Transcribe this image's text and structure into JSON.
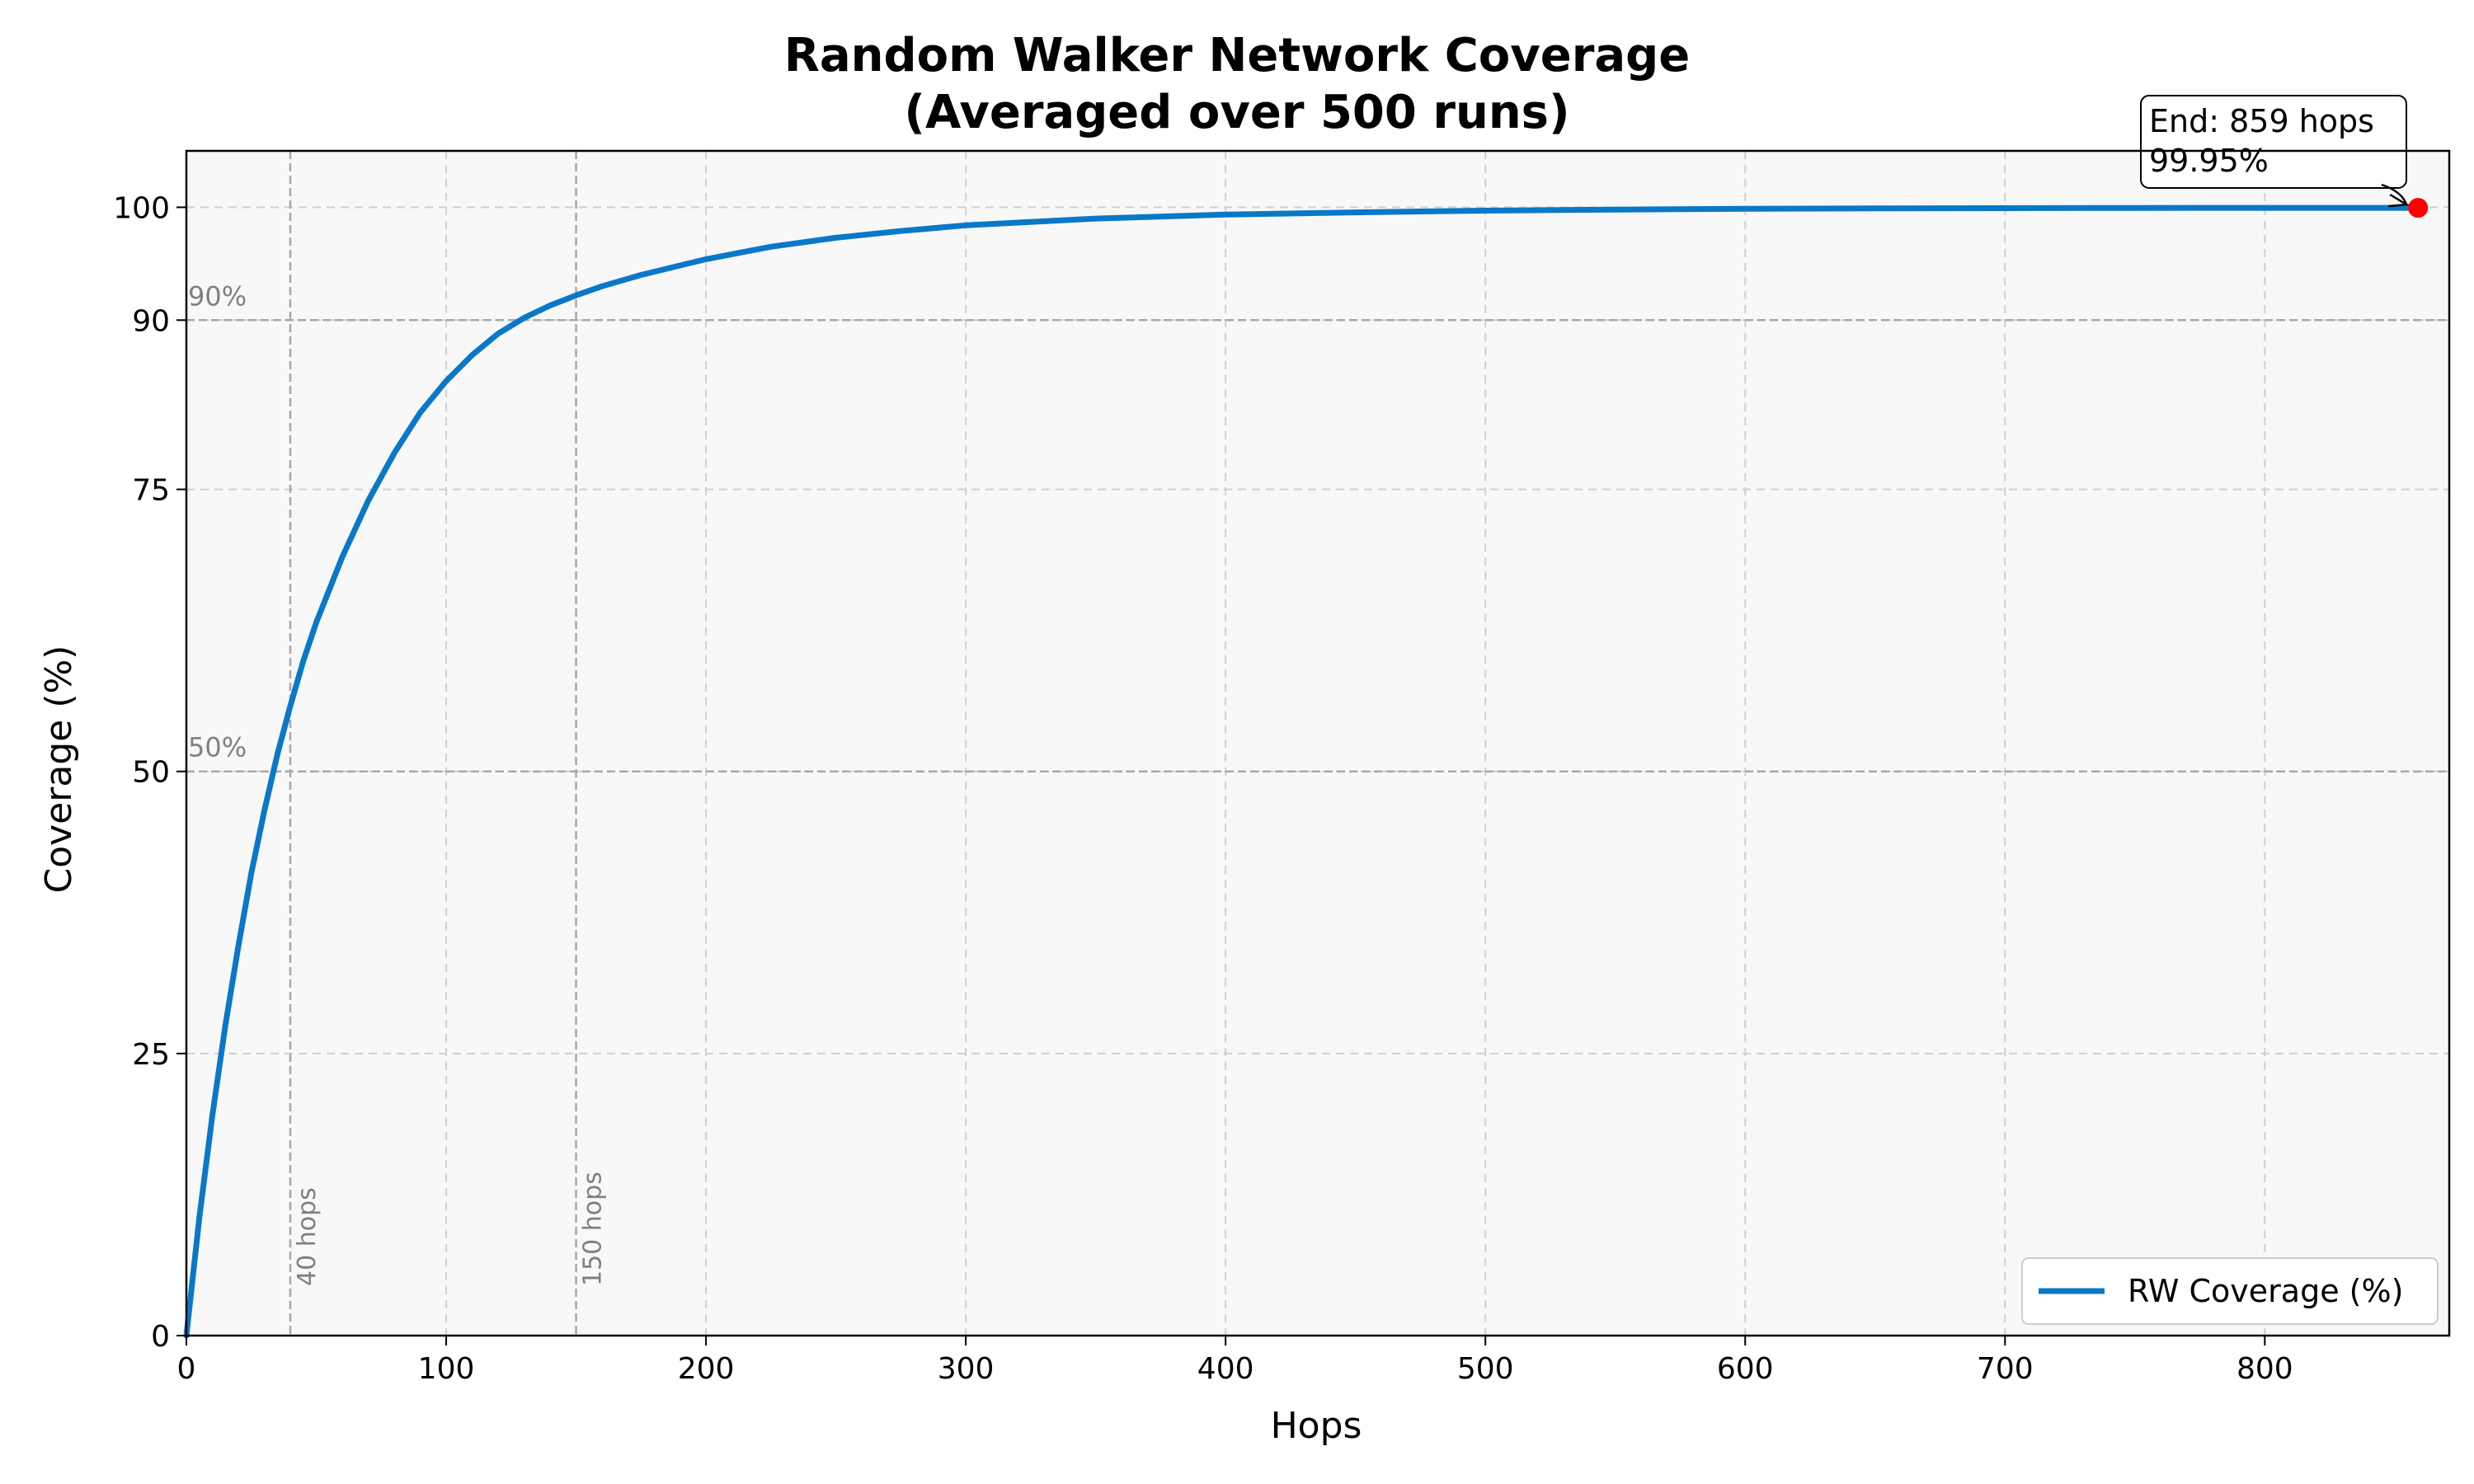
{
  "chart_data": {
    "type": "line",
    "title_line1": "Random Walker Network Coverage",
    "title_line2": "(Averaged over 500 runs)",
    "xlabel": "Hops",
    "ylabel": "Coverage (%)",
    "xlim": [
      0,
      871
    ],
    "ylim": [
      0,
      105
    ],
    "x_ticks": [
      0,
      100,
      200,
      300,
      400,
      500,
      600,
      700,
      800
    ],
    "y_ticks": [
      0,
      25,
      50,
      75,
      90,
      100
    ],
    "grid": true,
    "legend_position": "lower-right",
    "series": [
      {
        "name": "RW Coverage (%)",
        "color": "#0a78c8",
        "x": [
          0,
          5,
          10,
          15,
          20,
          25,
          30,
          35,
          40,
          45,
          50,
          60,
          70,
          80,
          90,
          100,
          110,
          120,
          130,
          140,
          150,
          160,
          175,
          200,
          225,
          250,
          275,
          300,
          350,
          400,
          450,
          500,
          550,
          600,
          650,
          700,
          750,
          800,
          859
        ],
        "y": [
          0,
          10.5,
          19.5,
          27.5,
          34.5,
          41,
          46.5,
          51.5,
          55.8,
          59.8,
          63.2,
          69,
          74,
          78.2,
          81.8,
          84.6,
          86.9,
          88.8,
          90.2,
          91.3,
          92.2,
          93.0,
          94.0,
          95.4,
          96.5,
          97.3,
          97.9,
          98.4,
          99.0,
          99.35,
          99.55,
          99.7,
          99.8,
          99.86,
          99.9,
          99.92,
          99.94,
          99.95,
          99.95
        ]
      }
    ],
    "reference_lines": {
      "horizontal": [
        {
          "y": 90,
          "label": "90%"
        },
        {
          "y": 50,
          "label": "50%"
        }
      ],
      "vertical": [
        {
          "x": 40,
          "label": "40 hops"
        },
        {
          "x": 150,
          "label": "150 hops"
        }
      ]
    },
    "end_marker": {
      "x": 859,
      "y": 99.95,
      "color": "#ff0000",
      "label_line1": "End: 859 hops",
      "label_line2": "99.95%"
    }
  }
}
